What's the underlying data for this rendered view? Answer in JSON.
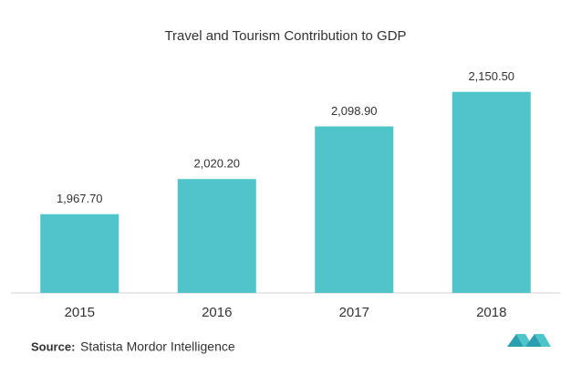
{
  "chart_data": {
    "type": "bar",
    "title": "Travel and Tourism Contribution to GDP",
    "categories": [
      "2015",
      "2016",
      "2017",
      "2018"
    ],
    "values": [
      1967.7,
      2020.2,
      2098.9,
      2150.5
    ],
    "value_labels": [
      "1,967.70",
      "2,020.20",
      "2,098.90",
      "2,150.50"
    ],
    "color": "#4fc4c9",
    "ylim": [
      1850,
      2200
    ]
  },
  "source": {
    "label": "Source:",
    "text": "Statista Mordor Intelligence"
  }
}
